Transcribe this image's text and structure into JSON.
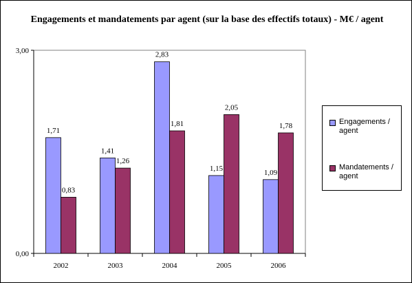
{
  "chart_data": {
    "type": "bar",
    "title": "Engagements et mandatements par agent (sur la base des effectifs totaux) - M€ / agent",
    "categories": [
      "2002",
      "2003",
      "2004",
      "2005",
      "2006"
    ],
    "series": [
      {
        "name": "Engagements / agent",
        "values": [
          1.71,
          1.41,
          2.83,
          1.15,
          1.09
        ],
        "labels": [
          "1,71",
          "1,41",
          "2,83",
          "1,15",
          "1,09"
        ],
        "color": "#9999ff"
      },
      {
        "name": "Mandatements / agent",
        "values": [
          0.83,
          1.26,
          1.81,
          2.05,
          1.78
        ],
        "labels": [
          "0,83",
          "1,26",
          "1,81",
          "2,05",
          "1,78"
        ],
        "color": "#993366"
      }
    ],
    "yticks": [
      "0,00",
      "3,00"
    ],
    "ylim": [
      0,
      3
    ],
    "xlabel": "",
    "ylabel": "",
    "grid": false,
    "legend": "right"
  }
}
